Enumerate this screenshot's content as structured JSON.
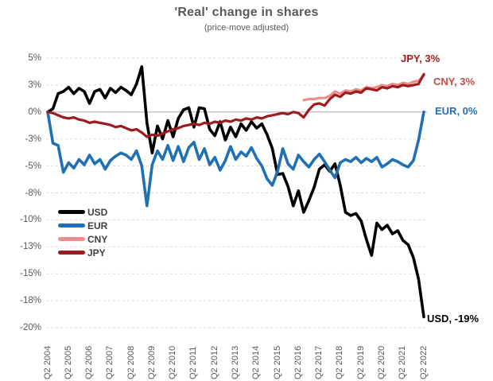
{
  "title": "'Real' change in shares",
  "subtitle": "(price-move adjusted)",
  "colors": {
    "background": "#FFFFFF",
    "title_text": "#595959",
    "axis_text": "#595959",
    "grid": "#DADADA",
    "zero_line": "#C0C0C0"
  },
  "chart_data": {
    "type": "line",
    "title": "'Real' change in shares",
    "subtitle": "(price-move adjusted)",
    "x_frequency": "quarterly",
    "x_start": "Q2 2004",
    "x_end": "Q2 2022",
    "x_tick_labels": [
      "Q2 2004",
      "Q2 2005",
      "Q2 2006",
      "Q2 2007",
      "Q2 2008",
      "Q2 2009",
      "Q2 2010",
      "Q2 2011",
      "Q2 2012",
      "Q2 2013",
      "Q2 2014",
      "Q2 2015",
      "Q2 2016",
      "Q2 2017",
      "Q2 2018",
      "Q2 2019",
      "Q2 2020",
      "Q2 2021",
      "Q2 2022"
    ],
    "ylim": [
      -20,
      5
    ],
    "unit": "%",
    "grid": "horizontal-dashed",
    "legend_position": "inside-left-middle",
    "y_ticks": [
      {
        "value": 5,
        "label": "5%"
      },
      {
        "value": 2.5,
        "label": "3%"
      },
      {
        "value": 0,
        "label": "0%"
      },
      {
        "value": -2.5,
        "label": "-3%"
      },
      {
        "value": -5,
        "label": "-5%"
      },
      {
        "value": -7.5,
        "label": "-8%"
      },
      {
        "value": -10,
        "label": "-10%"
      },
      {
        "value": -12.5,
        "label": "-13%"
      },
      {
        "value": -15,
        "label": "-15%"
      },
      {
        "value": -17.5,
        "label": "-18%"
      },
      {
        "value": -20,
        "label": "-20%"
      }
    ],
    "series": [
      {
        "name": "USD",
        "color": "#000000",
        "label_color": "#000000",
        "end_label": "USD, -19%",
        "end_value": "-19%",
        "width": 3.6,
        "label_dx": 4,
        "label_dy": -5,
        "values": [
          0,
          0.3,
          1.7,
          1.9,
          2.3,
          1.7,
          2.2,
          1.9,
          0.8,
          1.9,
          2.1,
          1.3,
          2.2,
          1.8,
          2.3,
          2,
          1.6,
          2.6,
          4.2,
          -1,
          -3.8,
          -1.3,
          -2.5,
          -0.8,
          -2.3,
          -0.6,
          0.2,
          0.4,
          -1.4,
          0.4,
          0.3,
          -1.6,
          -2.2,
          -0.9,
          -2.6,
          -1.4,
          -2.3,
          -1.1,
          -1.7,
          -0.9,
          -1.5,
          -1.1,
          -2.1,
          -3.4,
          -5.8,
          -5.7,
          -6.9,
          -8.7,
          -7.3,
          -9.3,
          -8.2,
          -7,
          -5.3,
          -4.9,
          -5.5,
          -4.8,
          -6.8,
          -9.3,
          -9.6,
          -9.4,
          -10.1,
          -11.8,
          -13.3,
          -10.3,
          -10.9,
          -10.5,
          -11.3,
          -11,
          -11.9,
          -12.3,
          -13.5,
          -15.5,
          -19
        ]
      },
      {
        "name": "EUR",
        "color": "#2070B4",
        "label_color": "#1F6FB5",
        "end_label": "EUR, 0%",
        "end_value": "0%",
        "width": 3.6,
        "label_dx": 14,
        "label_dy": -9,
        "values": [
          0,
          -2.9,
          -3.1,
          -5.6,
          -4.7,
          -5.2,
          -4.4,
          -4.9,
          -4,
          -4.8,
          -4.4,
          -5.3,
          -4.5,
          -4.1,
          -3.8,
          -4,
          -4.4,
          -3.6,
          -5,
          -8.7,
          -4.9,
          -3.6,
          -4.4,
          -3.1,
          -4.5,
          -3.2,
          -4.6,
          -3.3,
          -2.8,
          -4.4,
          -3.4,
          -4.9,
          -4.2,
          -5.4,
          -4.5,
          -3.2,
          -4.4,
          -3.7,
          -4.1,
          -3.3,
          -4.3,
          -5,
          -6.2,
          -6.8,
          -5.5,
          -3.4,
          -4.8,
          -5.3,
          -4,
          -4.6,
          -5.1,
          -4.4,
          -3.9,
          -4.6,
          -5.4,
          -6.1,
          -4.7,
          -4.4,
          -4.6,
          -4.2,
          -4.7,
          -4.3,
          -4.6,
          -4.2,
          -5.1,
          -4.8,
          -4.4,
          -4.6,
          -4.9,
          -5.1,
          -4.5,
          -2.6,
          0
        ]
      },
      {
        "name": "CNY",
        "color": "#EC8E8C",
        "label_color": "#CB4A46",
        "end_label": "CNY, 3%",
        "end_value": "3%",
        "width": 3.2,
        "label_dx": 12,
        "label_dy": 0,
        "values": [
          null,
          null,
          null,
          null,
          null,
          null,
          null,
          null,
          null,
          null,
          null,
          null,
          null,
          null,
          null,
          null,
          null,
          null,
          null,
          null,
          null,
          null,
          null,
          null,
          null,
          null,
          null,
          null,
          null,
          null,
          null,
          null,
          null,
          null,
          null,
          null,
          null,
          null,
          null,
          null,
          null,
          null,
          null,
          null,
          null,
          null,
          null,
          null,
          null,
          1.1,
          1.2,
          1.2,
          1.3,
          1.3,
          1.5,
          1.9,
          1.7,
          2,
          1.9,
          2.1,
          2,
          2.3,
          2.2,
          2.3,
          2.5,
          2.4,
          2.6,
          2.5,
          2.7,
          2.6,
          2.8,
          2.9,
          3.4
        ]
      },
      {
        "name": "JPY",
        "color": "#9E1B1F",
        "label_color": "#A91B1E",
        "end_label": "JPY, 3%",
        "end_value": "3%",
        "width": 3.2,
        "label_dx": -29,
        "label_dy": -27,
        "values": [
          0,
          -0.1,
          -0.3,
          -0.5,
          -0.6,
          -0.5,
          -0.7,
          -0.8,
          -1,
          -0.9,
          -1,
          -1.1,
          -1.2,
          -1.4,
          -1.3,
          -1.5,
          -1.7,
          -1.6,
          -1.9,
          -2.3,
          -2.1,
          -2.2,
          -2,
          -1.8,
          -1.6,
          -1.5,
          -1.3,
          -1.2,
          -1.1,
          -1.2,
          -1,
          -1.1,
          -0.9,
          -1,
          -0.8,
          -0.9,
          -0.7,
          -0.8,
          -0.6,
          -0.7,
          -0.5,
          -0.6,
          -0.4,
          -0.3,
          -0.2,
          -0.1,
          -0.2,
          0,
          -0.1,
          -0.5,
          0.2,
          0.7,
          0.8,
          0.6,
          1.2,
          1.6,
          1.4,
          1.8,
          1.7,
          1.9,
          1.8,
          2.2,
          2.1,
          2,
          2.3,
          2.2,
          2.4,
          2.3,
          2.5,
          2.4,
          2.5,
          2.6,
          3.5
        ]
      }
    ]
  }
}
